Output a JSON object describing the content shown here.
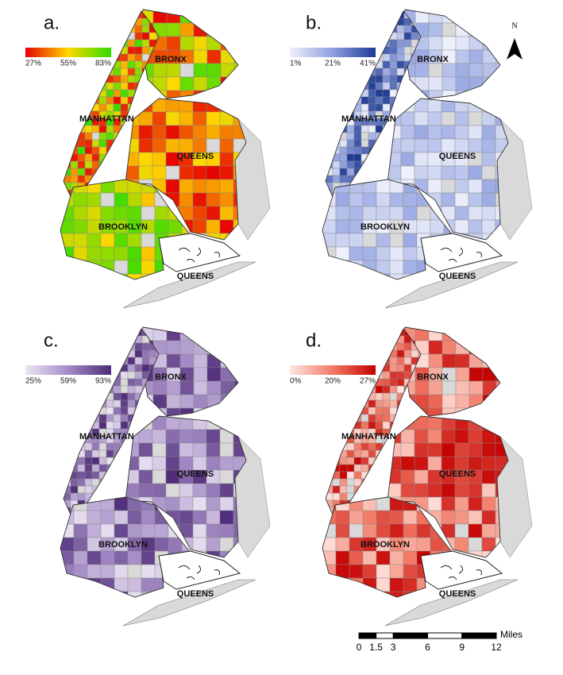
{
  "panels": [
    {
      "label": "a.",
      "legend": {
        "colors": [
          "#e60000",
          "#ffd800",
          "#2edc00"
        ],
        "labels": [
          "27%",
          "55%",
          "83%"
        ]
      },
      "boroughs": [
        "BRONX",
        "MANHATTAN",
        "QUEENS",
        "BROOKLYN",
        "QUEENS"
      ]
    },
    {
      "label": "b.",
      "legend": {
        "colors": [
          "#eef0fb",
          "#8fa0e0",
          "#1c3a93"
        ],
        "labels": [
          "1%",
          "21%",
          "41%"
        ]
      },
      "boroughs": [
        "BRONX",
        "MANHATTAN",
        "QUEENS",
        "BROOKLYN",
        "QUEENS"
      ]
    },
    {
      "label": "c.",
      "legend": {
        "colors": [
          "#ece6f3",
          "#a48cc6",
          "#4e2b78"
        ],
        "labels": [
          "25%",
          "59%",
          "93%"
        ]
      },
      "boroughs": [
        "BRONX",
        "MANHATTAN",
        "QUEENS",
        "BROOKLYN",
        "QUEENS"
      ]
    },
    {
      "label": "d.",
      "legend": {
        "colors": [
          "#ffe6e0",
          "#f27a66",
          "#c40000"
        ],
        "labels": [
          "0%",
          "20%",
          "27%"
        ]
      },
      "boroughs": [
        "BRONX",
        "MANHATTAN",
        "QUEENS",
        "BROOKLYN",
        "QUEENS"
      ]
    }
  ],
  "north": "N",
  "scale": {
    "unit": "Miles",
    "ticks": [
      0,
      1.5,
      3,
      6,
      9,
      12
    ]
  }
}
